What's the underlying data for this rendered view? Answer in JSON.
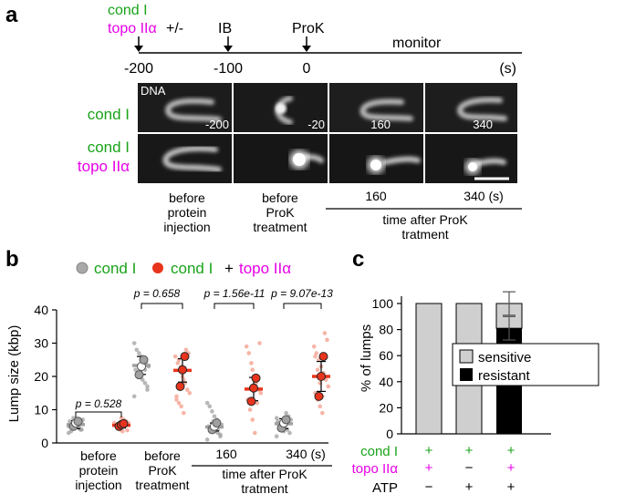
{
  "colors": {
    "green": "#1aa31a",
    "magenta": "#e600e6",
    "red": "#e8341c",
    "pink": "#f5a898",
    "grey": "#a0a0a0",
    "lightgrey": "#cfcfcf"
  },
  "panel_a": {
    "letter": "a",
    "cond": "cond I",
    "topo": "topo IIα",
    "plusminus": "+/-",
    "ib": "IB",
    "prok": "ProK",
    "monitor": "monitor",
    "ticks": [
      "-200",
      "-100",
      "0"
    ],
    "unit": "(s)",
    "row1_label": "cond I",
    "row2_label_1": "cond I",
    "row2_label_2": "topo IIα",
    "dna_label": "DNA",
    "frame_times": [
      "-200",
      "-20",
      "160",
      "340"
    ],
    "captions": {
      "c1": [
        "before",
        "protein",
        "injection"
      ],
      "c2": [
        "before",
        "ProK",
        "treatment"
      ],
      "c3": "160",
      "c4": "340 (s)",
      "bracket": [
        "time after ProK",
        "tratment"
      ]
    }
  },
  "panel_b": {
    "letter": "b",
    "legend_cond": "cond I",
    "legend_plus": "+",
    "legend_topo": "topo IIα",
    "pvalues": [
      "p = 0.528",
      "p = 0.658",
      "p = 1.56e-11",
      "p = 9.07e-13"
    ],
    "group_labels": {
      "g1": [
        "before",
        "protein",
        "injection"
      ],
      "g2": [
        "before",
        "ProK",
        "treatment"
      ],
      "g3": "160",
      "g4": "340 (s)",
      "bracket": [
        "time after ProK",
        "tratment"
      ]
    }
  },
  "panel_c": {
    "letter": "c",
    "legend": [
      "sensitive",
      "resistant"
    ],
    "rows": {
      "cond": {
        "label": "cond I",
        "marks": [
          "+",
          "+",
          "+"
        ]
      },
      "topo": {
        "label": "topo IIα",
        "marks": [
          "+",
          "−",
          "+"
        ]
      },
      "atp": {
        "label": "ATP",
        "marks": [
          "−",
          "+",
          "+"
        ]
      }
    }
  },
  "chart_data": [
    {
      "type": "scatter",
      "ylabel": "Lump size (kbp)",
      "ylim": [
        0,
        40
      ],
      "yticks": [
        "0",
        "10",
        "20",
        "30",
        "40"
      ],
      "groups": [
        {
          "name": "before protein injection",
          "cond_mean": 5.5,
          "cond_err": 1.2,
          "topo_mean": 5.3,
          "topo_err": 0.8,
          "cond_points": [
            3,
            4,
            4.5,
            5,
            5.5,
            6,
            6.5,
            7,
            4,
            5,
            6,
            7.5,
            3.5,
            5,
            6
          ],
          "topo_points": [
            3.5,
            4,
            5,
            5.5,
            6,
            6.5,
            7,
            7.5,
            4.5,
            5,
            6,
            3.8,
            5.2,
            6.3
          ],
          "cond_reps": [
            5,
            6,
            6.5
          ],
          "topo_reps": [
            5,
            5.5,
            5.8
          ]
        },
        {
          "name": "before ProK treatment",
          "cond_mean": 23.3,
          "cond_err": 2.7,
          "topo_mean": 21.8,
          "topo_err": 3.5,
          "cond_points": [
            14,
            16,
            18,
            19,
            20,
            21,
            22,
            23,
            24,
            25,
            26,
            27,
            28,
            30,
            17,
            22,
            25,
            21
          ],
          "topo_points": [
            9,
            11,
            12,
            14,
            15,
            16,
            18,
            20,
            22,
            24,
            26,
            27,
            28,
            19,
            23,
            25,
            13
          ],
          "cond_reps": [
            20.5,
            23,
            25
          ],
          "topo_reps": [
            17,
            22,
            26
          ]
        },
        {
          "name": "160",
          "cond_mean": 4.8,
          "cond_err": 1.2,
          "topo_mean": 16.2,
          "topo_err": 3.5,
          "cond_points": [
            1,
            2,
            3,
            3.5,
            4,
            4.5,
            5,
            5.5,
            6,
            7,
            8,
            9.5,
            11,
            12,
            2.5,
            4,
            5,
            6.5
          ],
          "topo_points": [
            3,
            7,
            10,
            13,
            15,
            16,
            18,
            20,
            24,
            27,
            29,
            30,
            12,
            17,
            22
          ],
          "cond_reps": [
            4,
            5,
            6
          ],
          "topo_reps": [
            12.5,
            16.5,
            19.5
          ]
        },
        {
          "name": "340 (s)",
          "cond_mean": 5.8,
          "cond_err": 1.5,
          "topo_mean": 20.0,
          "topo_err": 4.5,
          "cond_points": [
            2,
            3,
            4,
            5,
            5.5,
            6,
            6.5,
            7,
            8,
            9,
            3.5,
            4.5,
            6,
            7.5
          ],
          "topo_points": [
            9,
            11,
            13,
            15,
            17,
            19,
            21,
            23,
            25,
            27,
            29,
            31,
            33,
            14,
            18,
            22,
            26
          ],
          "cond_reps": [
            4.5,
            6,
            7
          ],
          "topo_reps": [
            14,
            20,
            26
          ]
        }
      ]
    },
    {
      "type": "bar",
      "ylabel": "% of lumps",
      "ylim": [
        0,
        100
      ],
      "yticks": [
        "0",
        "20",
        "40",
        "60",
        "80",
        "100"
      ],
      "categories": [
        "1",
        "2",
        "3"
      ],
      "series": [
        {
          "name": "resistant",
          "values": [
            0,
            0,
            81
          ]
        },
        {
          "name": "sensitive",
          "values": [
            100,
            100,
            19
          ]
        }
      ],
      "error": [
        {
          "center": 81,
          "err": 9
        },
        {
          "center": 100,
          "err": 9
        }
      ]
    }
  ]
}
